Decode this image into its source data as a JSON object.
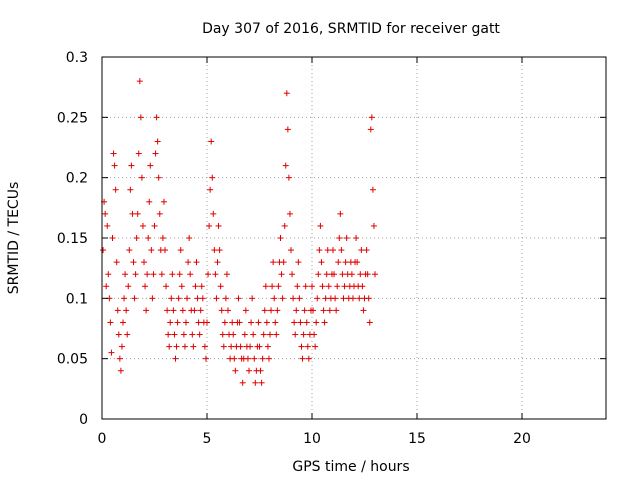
{
  "chart_data": {
    "type": "scatter",
    "title": "Day 307 of 2016, SRMTID for receiver gatt",
    "xlabel": "GPS time / hours",
    "ylabel": "SRMTID / TECUs",
    "xlim": [
      0,
      24
    ],
    "ylim": [
      0,
      0.3
    ],
    "xticks": [
      0,
      5,
      10,
      15,
      20
    ],
    "yticks": [
      0,
      0.05,
      0.1,
      0.15,
      0.2,
      0.25,
      0.3
    ],
    "xtick_labels": [
      "0",
      "5",
      "10",
      "15",
      "20"
    ],
    "ytick_labels": [
      "0",
      "0.05",
      "0.1",
      "0.15",
      "0.2",
      "0.25",
      "0.3"
    ],
    "grid": true,
    "marker": "+",
    "color": "#e00000",
    "series": [
      {
        "points": [
          [
            0.05,
            0.14
          ],
          [
            0.1,
            0.18
          ],
          [
            0.15,
            0.17
          ],
          [
            0.2,
            0.11
          ],
          [
            0.25,
            0.16
          ],
          [
            0.3,
            0.12
          ],
          [
            0.35,
            0.1
          ],
          [
            0.4,
            0.08
          ],
          [
            0.45,
            0.055
          ],
          [
            0.5,
            0.15
          ],
          [
            0.55,
            0.22
          ],
          [
            0.6,
            0.21
          ],
          [
            0.65,
            0.19
          ],
          [
            0.7,
            0.13
          ],
          [
            0.75,
            0.09
          ],
          [
            0.8,
            0.07
          ],
          [
            0.85,
            0.05
          ],
          [
            0.9,
            0.04
          ],
          [
            0.95,
            0.06
          ],
          [
            1.0,
            0.08
          ],
          [
            1.05,
            0.1
          ],
          [
            1.1,
            0.12
          ],
          [
            1.15,
            0.09
          ],
          [
            1.2,
            0.07
          ],
          [
            1.25,
            0.11
          ],
          [
            1.3,
            0.14
          ],
          [
            1.35,
            0.19
          ],
          [
            1.4,
            0.21
          ],
          [
            1.45,
            0.17
          ],
          [
            1.5,
            0.13
          ],
          [
            1.55,
            0.1
          ],
          [
            1.6,
            0.12
          ],
          [
            1.65,
            0.15
          ],
          [
            1.7,
            0.17
          ],
          [
            1.75,
            0.22
          ],
          [
            1.8,
            0.28
          ],
          [
            1.85,
            0.25
          ],
          [
            1.9,
            0.2
          ],
          [
            1.95,
            0.16
          ],
          [
            2.0,
            0.13
          ],
          [
            2.05,
            0.11
          ],
          [
            2.1,
            0.09
          ],
          [
            2.15,
            0.12
          ],
          [
            2.2,
            0.15
          ],
          [
            2.25,
            0.18
          ],
          [
            2.3,
            0.21
          ],
          [
            2.35,
            0.14
          ],
          [
            2.4,
            0.1
          ],
          [
            2.45,
            0.12
          ],
          [
            2.5,
            0.16
          ],
          [
            2.55,
            0.22
          ],
          [
            2.6,
            0.25
          ],
          [
            2.65,
            0.23
          ],
          [
            2.7,
            0.2
          ],
          [
            2.75,
            0.17
          ],
          [
            2.8,
            0.14
          ],
          [
            2.85,
            0.12
          ],
          [
            2.9,
            0.15
          ],
          [
            2.95,
            0.18
          ],
          [
            3.0,
            0.14
          ],
          [
            3.05,
            0.11
          ],
          [
            3.1,
            0.09
          ],
          [
            3.15,
            0.07
          ],
          [
            3.2,
            0.06
          ],
          [
            3.25,
            0.08
          ],
          [
            3.3,
            0.1
          ],
          [
            3.35,
            0.12
          ],
          [
            3.4,
            0.09
          ],
          [
            3.45,
            0.07
          ],
          [
            3.5,
            0.05
          ],
          [
            3.55,
            0.06
          ],
          [
            3.6,
            0.08
          ],
          [
            3.65,
            0.1
          ],
          [
            3.7,
            0.12
          ],
          [
            3.75,
            0.14
          ],
          [
            3.8,
            0.11
          ],
          [
            3.85,
            0.09
          ],
          [
            3.9,
            0.07
          ],
          [
            3.95,
            0.06
          ],
          [
            4.0,
            0.08
          ],
          [
            4.05,
            0.1
          ],
          [
            4.1,
            0.13
          ],
          [
            4.15,
            0.15
          ],
          [
            4.2,
            0.12
          ],
          [
            4.25,
            0.09
          ],
          [
            4.3,
            0.07
          ],
          [
            4.35,
            0.06
          ],
          [
            4.4,
            0.09
          ],
          [
            4.45,
            0.11
          ],
          [
            4.5,
            0.13
          ],
          [
            4.55,
            0.1
          ],
          [
            4.6,
            0.08
          ],
          [
            4.65,
            0.07
          ],
          [
            4.7,
            0.09
          ],
          [
            4.75,
            0.11
          ],
          [
            4.8,
            0.1
          ],
          [
            4.85,
            0.08
          ],
          [
            4.9,
            0.06
          ],
          [
            4.95,
            0.05
          ],
          [
            5.0,
            0.08
          ],
          [
            5.05,
            0.12
          ],
          [
            5.1,
            0.16
          ],
          [
            5.15,
            0.19
          ],
          [
            5.2,
            0.23
          ],
          [
            5.25,
            0.2
          ],
          [
            5.3,
            0.17
          ],
          [
            5.35,
            0.14
          ],
          [
            5.4,
            0.12
          ],
          [
            5.45,
            0.1
          ],
          [
            5.5,
            0.13
          ],
          [
            5.55,
            0.16
          ],
          [
            5.6,
            0.14
          ],
          [
            5.65,
            0.11
          ],
          [
            5.7,
            0.09
          ],
          [
            5.75,
            0.07
          ],
          [
            5.8,
            0.06
          ],
          [
            5.85,
            0.08
          ],
          [
            5.9,
            0.1
          ],
          [
            5.95,
            0.12
          ],
          [
            6.0,
            0.09
          ],
          [
            6.05,
            0.07
          ],
          [
            6.1,
            0.05
          ],
          [
            6.15,
            0.06
          ],
          [
            6.2,
            0.08
          ],
          [
            6.25,
            0.07
          ],
          [
            6.3,
            0.05
          ],
          [
            6.35,
            0.04
          ],
          [
            6.4,
            0.06
          ],
          [
            6.45,
            0.08
          ],
          [
            6.5,
            0.1
          ],
          [
            6.55,
            0.08
          ],
          [
            6.6,
            0.06
          ],
          [
            6.65,
            0.05
          ],
          [
            6.7,
            0.03
          ],
          [
            6.75,
            0.05
          ],
          [
            6.8,
            0.07
          ],
          [
            6.85,
            0.09
          ],
          [
            6.9,
            0.06
          ],
          [
            6.95,
            0.05
          ],
          [
            7.0,
            0.04
          ],
          [
            7.05,
            0.06
          ],
          [
            7.1,
            0.08
          ],
          [
            7.15,
            0.1
          ],
          [
            7.2,
            0.07
          ],
          [
            7.25,
            0.05
          ],
          [
            7.3,
            0.03
          ],
          [
            7.35,
            0.04
          ],
          [
            7.4,
            0.06
          ],
          [
            7.45,
            0.08
          ],
          [
            7.5,
            0.06
          ],
          [
            7.55,
            0.04
          ],
          [
            7.6,
            0.03
          ],
          [
            7.65,
            0.05
          ],
          [
            7.7,
            0.07
          ],
          [
            7.75,
            0.09
          ],
          [
            7.8,
            0.11
          ],
          [
            7.85,
            0.08
          ],
          [
            7.9,
            0.06
          ],
          [
            7.95,
            0.05
          ],
          [
            8.0,
            0.07
          ],
          [
            8.05,
            0.09
          ],
          [
            8.1,
            0.11
          ],
          [
            8.15,
            0.13
          ],
          [
            8.2,
            0.1
          ],
          [
            8.25,
            0.08
          ],
          [
            8.3,
            0.07
          ],
          [
            8.35,
            0.09
          ],
          [
            8.4,
            0.11
          ],
          [
            8.45,
            0.13
          ],
          [
            8.5,
            0.15
          ],
          [
            8.55,
            0.12
          ],
          [
            8.6,
            0.1
          ],
          [
            8.65,
            0.13
          ],
          [
            8.7,
            0.16
          ],
          [
            8.75,
            0.21
          ],
          [
            8.8,
            0.27
          ],
          [
            8.85,
            0.24
          ],
          [
            8.9,
            0.2
          ],
          [
            8.95,
            0.17
          ],
          [
            9.0,
            0.14
          ],
          [
            9.05,
            0.12
          ],
          [
            9.1,
            0.1
          ],
          [
            9.15,
            0.08
          ],
          [
            9.2,
            0.07
          ],
          [
            9.25,
            0.09
          ],
          [
            9.3,
            0.11
          ],
          [
            9.35,
            0.13
          ],
          [
            9.4,
            0.1
          ],
          [
            9.45,
            0.08
          ],
          [
            9.5,
            0.06
          ],
          [
            9.55,
            0.05
          ],
          [
            9.6,
            0.07
          ],
          [
            9.65,
            0.09
          ],
          [
            9.7,
            0.11
          ],
          [
            9.75,
            0.08
          ],
          [
            9.8,
            0.06
          ],
          [
            9.85,
            0.05
          ],
          [
            9.9,
            0.07
          ],
          [
            9.95,
            0.09
          ],
          [
            10.0,
            0.11
          ],
          [
            10.05,
            0.09
          ],
          [
            10.1,
            0.07
          ],
          [
            10.15,
            0.06
          ],
          [
            10.2,
            0.08
          ],
          [
            10.25,
            0.1
          ],
          [
            10.3,
            0.12
          ],
          [
            10.35,
            0.14
          ],
          [
            10.4,
            0.16
          ],
          [
            10.45,
            0.13
          ],
          [
            10.5,
            0.11
          ],
          [
            10.55,
            0.09
          ],
          [
            10.6,
            0.08
          ],
          [
            10.65,
            0.1
          ],
          [
            10.7,
            0.12
          ],
          [
            10.75,
            0.14
          ],
          [
            10.8,
            0.11
          ],
          [
            10.85,
            0.09
          ],
          [
            10.9,
            0.1
          ],
          [
            10.95,
            0.12
          ],
          [
            11.0,
            0.14
          ],
          [
            11.05,
            0.12
          ],
          [
            11.1,
            0.1
          ],
          [
            11.15,
            0.09
          ],
          [
            11.2,
            0.11
          ],
          [
            11.25,
            0.13
          ],
          [
            11.3,
            0.15
          ],
          [
            11.35,
            0.17
          ],
          [
            11.4,
            0.14
          ],
          [
            11.45,
            0.12
          ],
          [
            11.5,
            0.1
          ],
          [
            11.55,
            0.11
          ],
          [
            11.6,
            0.13
          ],
          [
            11.65,
            0.15
          ],
          [
            11.7,
            0.12
          ],
          [
            11.75,
            0.1
          ],
          [
            11.8,
            0.11
          ],
          [
            11.85,
            0.13
          ],
          [
            11.9,
            0.12
          ],
          [
            11.95,
            0.1
          ],
          [
            12.0,
            0.11
          ],
          [
            12.05,
            0.13
          ],
          [
            12.1,
            0.15
          ],
          [
            12.15,
            0.13
          ],
          [
            12.2,
            0.11
          ],
          [
            12.25,
            0.1
          ],
          [
            12.3,
            0.12
          ],
          [
            12.35,
            0.14
          ],
          [
            12.4,
            0.11
          ],
          [
            12.45,
            0.09
          ],
          [
            12.5,
            0.1
          ],
          [
            12.55,
            0.12
          ],
          [
            12.6,
            0.14
          ],
          [
            12.65,
            0.12
          ],
          [
            12.7,
            0.1
          ],
          [
            12.75,
            0.08
          ],
          [
            12.8,
            0.24
          ],
          [
            12.85,
            0.25
          ],
          [
            12.9,
            0.19
          ],
          [
            12.95,
            0.16
          ],
          [
            13.0,
            0.12
          ]
        ]
      }
    ]
  }
}
